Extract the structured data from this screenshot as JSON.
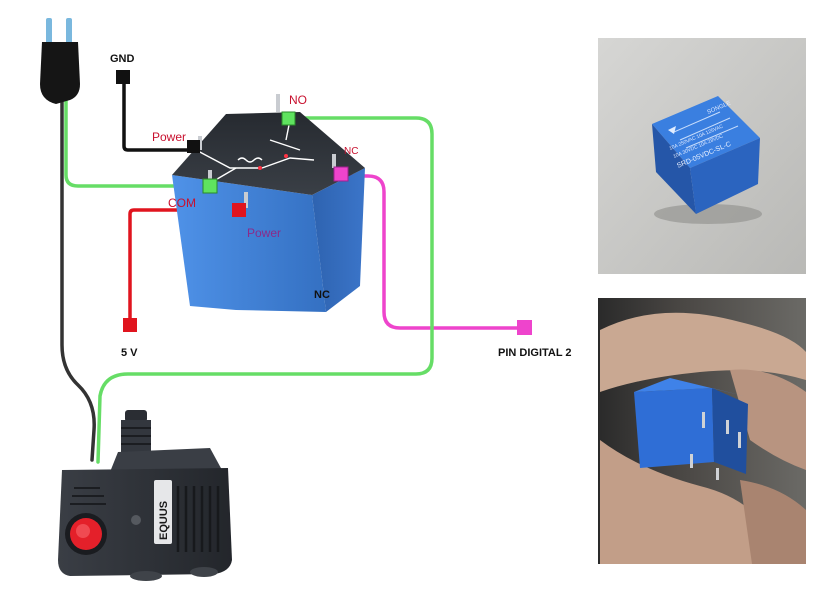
{
  "labels": {
    "gnd": "GND",
    "power_top": "Power",
    "no": "NO",
    "nc_small": "NC",
    "com": "COM",
    "power_bottom": "Power",
    "nc_bottom": "NC",
    "five_v": "5 V",
    "pin_digital": "PIN DIGITAL 2"
  },
  "relay_markings": {
    "brand": "SONGLE",
    "model": "SRD-05VDC-SL-C",
    "rating_1": "10A 250VAC 10A 125VAC",
    "rating_2": "10A 30VDC 10A 28VDC"
  },
  "pump": {
    "brand": "EQUUS"
  },
  "colors": {
    "gnd_wire": "#111111",
    "green_wire": "#66dd66",
    "red_wire": "#e0141e",
    "magenta_wire": "#ee44cc",
    "relay_blue": "#3f7fd6",
    "pump_body": "#2d3036"
  }
}
